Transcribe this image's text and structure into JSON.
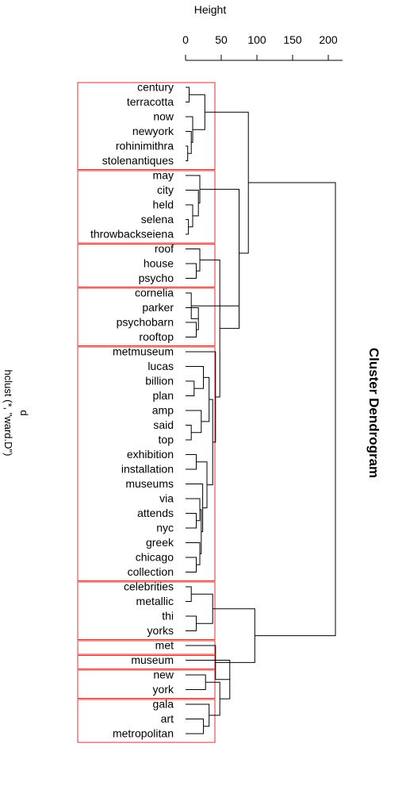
{
  "chart_data": {
    "type": "dendrogram",
    "orientation": "horizontal",
    "title": "Cluster Dendrogram",
    "subtitle_line1": "d",
    "subtitle_line2": "hclust (*, \"ward.D\")",
    "axis_label": "Height",
    "axis_ticks": [
      0,
      50,
      100,
      150,
      200
    ],
    "axis_range": [
      0,
      220
    ],
    "leaves": [
      "century",
      "terracotta",
      "now",
      "newyork",
      "rohinimithra",
      "stolenantiques",
      "may",
      "city",
      "held",
      "selena",
      "throwbackseiena",
      "roof",
      "house",
      "psycho",
      "cornelia",
      "parker",
      "psychobarn",
      "rooftop",
      "metmuseum",
      "lucas",
      "billion",
      "plan",
      "amp",
      "said",
      "top",
      "exhibition",
      "installation",
      "museums",
      "via",
      "attends",
      "nyc",
      "greek",
      "chicago",
      "collection",
      "celebrities",
      "metallic",
      "thi",
      "yorks",
      "met",
      "museum",
      "new",
      "york",
      "gala",
      "art",
      "metropolitan"
    ],
    "merges": [
      {
        "a": "L:century",
        "b": "L:terracotta",
        "h": 5
      },
      {
        "a": "L:rohinimithra",
        "b": "L:stolenantiques",
        "h": 3
      },
      {
        "a": "L:newyork",
        "b": "M:1",
        "h": 8
      },
      {
        "a": "L:now",
        "b": "M:2",
        "h": 10
      },
      {
        "a": "M:0",
        "b": "M:3",
        "h": 27
      },
      {
        "a": "L:selena",
        "b": "L:throwbackseiena",
        "h": 4
      },
      {
        "a": "L:held",
        "b": "M:5",
        "h": 10
      },
      {
        "a": "L:city",
        "b": "M:6",
        "h": 18
      },
      {
        "a": "L:may",
        "b": "M:7",
        "h": 20
      },
      {
        "a": "L:house",
        "b": "L:psycho",
        "h": 15
      },
      {
        "a": "L:roof",
        "b": "M:9",
        "h": 20
      },
      {
        "a": "L:psychobarn",
        "b": "L:rooftop",
        "h": 15
      },
      {
        "a": "L:parker",
        "b": "M:11",
        "h": 18
      },
      {
        "a": "L:cornelia",
        "b": "M:12",
        "h": 8
      },
      {
        "a": "L:billion",
        "b": "L:plan",
        "h": 12
      },
      {
        "a": "L:lucas",
        "b": "M:14",
        "h": 25
      },
      {
        "a": "L:said",
        "b": "L:top",
        "h": 8
      },
      {
        "a": "L:amp",
        "b": "M:16",
        "h": 22
      },
      {
        "a": "M:15",
        "b": "M:17",
        "h": 33
      },
      {
        "a": "L:exhibition",
        "b": "L:installation",
        "h": 15
      },
      {
        "a": "L:attends",
        "b": "L:nyc",
        "h": 15
      },
      {
        "a": "L:via",
        "b": "M:20",
        "h": 20
      },
      {
        "a": "L:chicago",
        "b": "L:collection",
        "h": 15
      },
      {
        "a": "L:greek",
        "b": "M:22",
        "h": 20
      },
      {
        "a": "M:21",
        "b": "M:23",
        "h": 22
      },
      {
        "a": "L:museums",
        "b": "M:24",
        "h": 24
      },
      {
        "a": "M:19",
        "b": "M:25",
        "h": 30
      },
      {
        "a": "M:18",
        "b": "M:26",
        "h": 38
      },
      {
        "a": "L:metmuseum",
        "b": "M:27",
        "h": 42
      },
      {
        "a": "M:10",
        "b": "M:28",
        "h": 48
      },
      {
        "a": "M:13",
        "b": "M:29",
        "h": 75
      },
      {
        "a": "M:8",
        "b": "M:30",
        "h": 75
      },
      {
        "a": "M:4",
        "b": "M:31",
        "h": 88
      },
      {
        "a": "L:celebrities",
        "b": "L:metallic",
        "h": 8
      },
      {
        "a": "L:thi",
        "b": "L:yorks",
        "h": 15
      },
      {
        "a": "M:33",
        "b": "M:34",
        "h": 38
      },
      {
        "a": "L:new",
        "b": "L:york",
        "h": 28
      },
      {
        "a": "L:art",
        "b": "L:metropolitan",
        "h": 25
      },
      {
        "a": "L:gala",
        "b": "M:37",
        "h": 33
      },
      {
        "a": "M:36",
        "b": "M:38",
        "h": 48
      },
      {
        "a": "L:museum",
        "b": "M:39",
        "h": 62
      },
      {
        "a": "L:met",
        "b": "M:40",
        "h": 42
      },
      {
        "a": "M:35",
        "b": "M:41",
        "h": 97
      },
      {
        "a": "M:32",
        "b": "M:42",
        "h": 210
      }
    ],
    "cluster_boxes": [
      {
        "first": "century",
        "last": "stolenantiques"
      },
      {
        "first": "may",
        "last": "throwbackseiena"
      },
      {
        "first": "roof",
        "last": "psycho"
      },
      {
        "first": "cornelia",
        "last": "rooftop"
      },
      {
        "first": "metmuseum",
        "last": "collection"
      },
      {
        "first": "celebrities",
        "last": "yorks"
      },
      {
        "first": "met",
        "last": "met"
      },
      {
        "first": "museum",
        "last": "museum"
      },
      {
        "first": "new",
        "last": "york"
      },
      {
        "first": "gala",
        "last": "metropolitan"
      }
    ],
    "box_color": "#e03030",
    "line_color": "#000000"
  }
}
